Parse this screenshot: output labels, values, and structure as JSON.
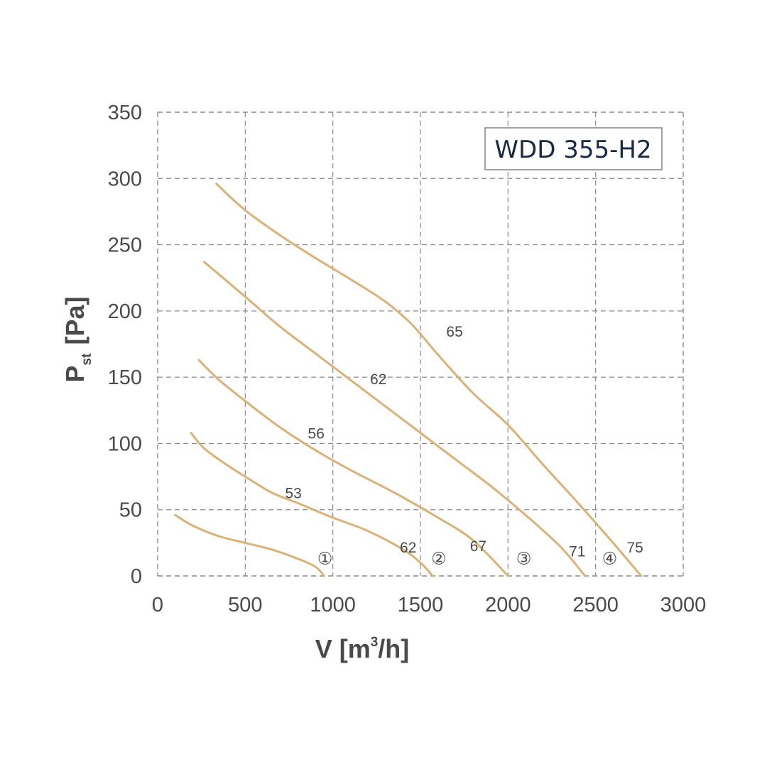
{
  "chart_data": {
    "type": "line",
    "title": "WDD 355-H2",
    "xlabel": {
      "main": "V [m",
      "sup": "3",
      "rest": "/h]"
    },
    "ylabel": {
      "main": "P",
      "sub": "st",
      "rest": "[Pa]"
    },
    "xlim": [
      0,
      3000
    ],
    "ylim": [
      0,
      350
    ],
    "x_ticks": [
      0,
      500,
      1000,
      1500,
      2000,
      2500,
      3000
    ],
    "x_tick_labels": [
      "0",
      "500",
      "1000",
      "1500",
      "2000",
      "2500",
      "3000"
    ],
    "y_ticks": [
      0,
      50,
      100,
      150,
      200,
      250,
      300,
      350
    ],
    "y_tick_labels": [
      "0",
      "50",
      "100",
      "150",
      "200",
      "250",
      "300",
      "350"
    ],
    "grid": true,
    "series": [
      {
        "points": [
          [
            100,
            46
          ],
          [
            200,
            38
          ],
          [
            350,
            30
          ],
          [
            500,
            25
          ],
          [
            650,
            20
          ],
          [
            800,
            13
          ],
          [
            900,
            7
          ],
          [
            950,
            0
          ]
        ],
        "labels": [
          {
            "text": "①",
            "x": 955,
            "y": 13,
            "kind": "id"
          }
        ]
      },
      {
        "points": [
          [
            190,
            108
          ],
          [
            260,
            97
          ],
          [
            370,
            86
          ],
          [
            500,
            75
          ],
          [
            650,
            63
          ],
          [
            800,
            55
          ],
          [
            1000,
            44
          ],
          [
            1200,
            34
          ],
          [
            1400,
            20
          ],
          [
            1500,
            10
          ],
          [
            1570,
            0
          ]
        ],
        "labels": [
          {
            "text": "53",
            "x": 775,
            "y": 63,
            "kind": "value"
          },
          {
            "text": "62",
            "x": 1430,
            "y": 22,
            "kind": "value"
          },
          {
            "text": "②",
            "x": 1605,
            "y": 13,
            "kind": "id"
          }
        ]
      },
      {
        "points": [
          [
            235,
            163
          ],
          [
            350,
            148
          ],
          [
            500,
            132
          ],
          [
            700,
            112
          ],
          [
            900,
            95
          ],
          [
            1100,
            80
          ],
          [
            1350,
            63
          ],
          [
            1600,
            44
          ],
          [
            1800,
            27
          ],
          [
            2000,
            0
          ]
        ],
        "labels": [
          {
            "text": "56",
            "x": 905,
            "y": 108,
            "kind": "value"
          },
          {
            "text": "67",
            "x": 1830,
            "y": 23,
            "kind": "value"
          },
          {
            "text": "③",
            "x": 2090,
            "y": 13,
            "kind": "id"
          }
        ]
      },
      {
        "points": [
          [
            265,
            237
          ],
          [
            400,
            222
          ],
          [
            550,
            205
          ],
          [
            700,
            188
          ],
          [
            900,
            168
          ],
          [
            1100,
            148
          ],
          [
            1300,
            128
          ],
          [
            1500,
            108
          ],
          [
            1700,
            88
          ],
          [
            1900,
            68
          ],
          [
            2100,
            46
          ],
          [
            2300,
            22
          ],
          [
            2440,
            0
          ]
        ],
        "labels": [
          {
            "text": "62",
            "x": 1260,
            "y": 149,
            "kind": "value"
          },
          {
            "text": "71",
            "x": 2395,
            "y": 19,
            "kind": "value"
          },
          {
            "text": "④",
            "x": 2580,
            "y": 13,
            "kind": "id"
          }
        ]
      },
      {
        "points": [
          [
            335,
            296
          ],
          [
            500,
            276
          ],
          [
            700,
            257
          ],
          [
            900,
            240
          ],
          [
            1100,
            224
          ],
          [
            1300,
            207
          ],
          [
            1450,
            190
          ],
          [
            1600,
            167
          ],
          [
            1800,
            138
          ],
          [
            2000,
            114
          ],
          [
            2200,
            84
          ],
          [
            2400,
            55
          ],
          [
            2600,
            25
          ],
          [
            2760,
            0
          ]
        ],
        "labels": [
          {
            "text": "65",
            "x": 1695,
            "y": 185,
            "kind": "value"
          },
          {
            "text": "75",
            "x": 2725,
            "y": 22,
            "kind": "value"
          }
        ]
      }
    ]
  }
}
